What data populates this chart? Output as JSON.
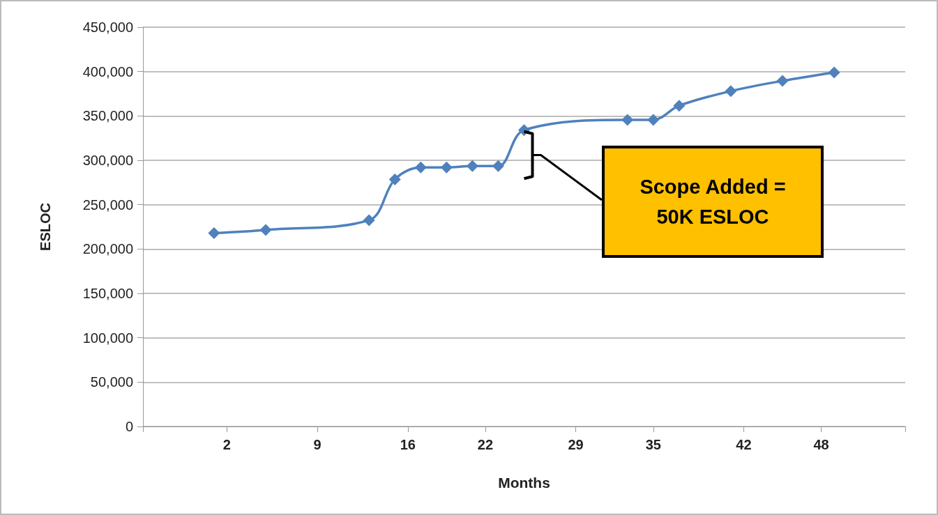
{
  "chart_data": {
    "type": "line",
    "xlabel": "Months",
    "ylabel": "ESLOC",
    "x": [
      1,
      5,
      13,
      15,
      17,
      19,
      21,
      23,
      25,
      33,
      35,
      37,
      41,
      45,
      49
    ],
    "series": [
      {
        "color": "#4f81bd",
        "values": [
          218000,
          221500,
          232500,
          278500,
          292000,
          292000,
          293500,
          293500,
          334000,
          345500,
          345500,
          361500,
          378000,
          389500,
          399000
        ]
      }
    ],
    "xlim": [
      -4.5,
      54.5
    ],
    "xticks": [
      {
        "value": -4.5,
        "label": null
      },
      2,
      9,
      16,
      22,
      29,
      35,
      42,
      48,
      {
        "value": 54.5,
        "label": null
      }
    ],
    "ylim": [
      0,
      450000
    ],
    "yticks": [
      0,
      {
        "value": 50000,
        "label": "50,000"
      },
      {
        "value": 100000,
        "label": "100,000"
      },
      {
        "value": 150000,
        "label": "150,000"
      },
      {
        "value": 200000,
        "label": "200,000"
      },
      {
        "value": 250000,
        "label": "250,000"
      },
      {
        "value": 300000,
        "label": "300,000"
      },
      {
        "value": 350000,
        "label": "350,000"
      },
      {
        "value": 400000,
        "label": "400,000"
      },
      {
        "value": 450000,
        "label": "450,000"
      }
    ],
    "grid": "y",
    "marker": "diamond",
    "line_style": "solid",
    "annotations": [
      "Scope Added =\n50K ESLOC"
    ]
  }
}
